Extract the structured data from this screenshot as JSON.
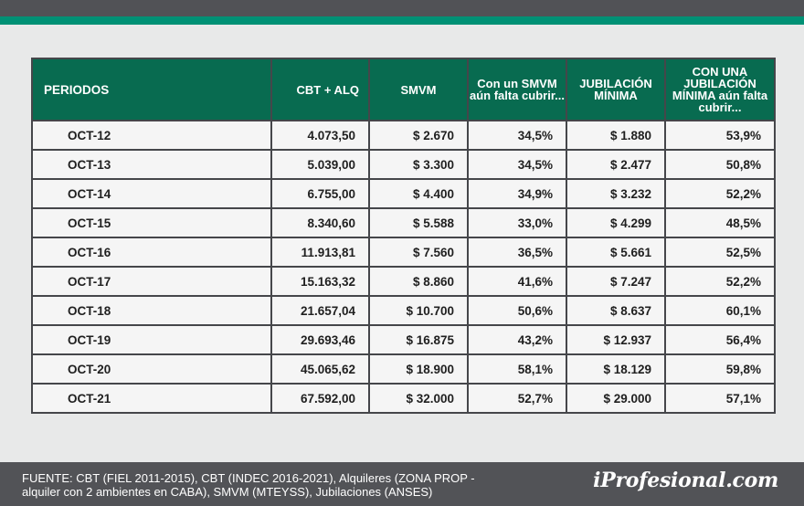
{
  "chart_data": {
    "type": "table",
    "columns": [
      "PERIODOS",
      "CBT + ALQ",
      "SMVM",
      "Con un SMVM aún falta cubrir...",
      "JUBILACIÓN MÍNIMA",
      "CON UNA JUBILACIÓN MÍNIMA aún falta cubrir..."
    ],
    "rows": [
      [
        "OCT-12",
        "4.073,50",
        "$ 2.670",
        "34,5%",
        "$ 1.880",
        "53,9%"
      ],
      [
        "OCT-13",
        "5.039,00",
        "$ 3.300",
        "34,5%",
        "$ 2.477",
        "50,8%"
      ],
      [
        "OCT-14",
        "6.755,00",
        "$ 4.400",
        "34,9%",
        "$ 3.232",
        "52,2%"
      ],
      [
        "OCT-15",
        "8.340,60",
        "$ 5.588",
        "33,0%",
        "$ 4.299",
        "48,5%"
      ],
      [
        "OCT-16",
        "11.913,81",
        "$ 7.560",
        "36,5%",
        "$ 5.661",
        "52,5%"
      ],
      [
        "OCT-17",
        "15.163,32",
        "$ 8.860",
        "41,6%",
        "$ 7.247",
        "52,2%"
      ],
      [
        "OCT-18",
        "21.657,04",
        "$ 10.700",
        "50,6%",
        "$ 8.637",
        "60,1%"
      ],
      [
        "OCT-19",
        "29.693,46",
        "$ 16.875",
        "43,2%",
        "$ 12.937",
        "56,4%"
      ],
      [
        "OCT-20",
        "45.065,62",
        "$ 18.900",
        "58,1%",
        "$ 18.129",
        "59,8%"
      ],
      [
        "OCT-21",
        "67.592,00",
        "$ 32.000",
        "52,7%",
        "$ 29.000",
        "57,1%"
      ]
    ]
  },
  "footer": {
    "source_line1": "FUENTE: CBT (FIEL 2011-2015), CBT (INDEC 2016-2021), Alquileres (ZONA PROP -",
    "source_line2": "alquiler con 2 ambientes en CABA), SMVM (MTEYSS), Jubilaciones (ANSES)",
    "brand": "iProfesional.com"
  },
  "colors": {
    "header_bg": "#086b50",
    "accent_green": "#009175",
    "dark_bar": "#515256",
    "page_bg": "#e8e9e9"
  }
}
